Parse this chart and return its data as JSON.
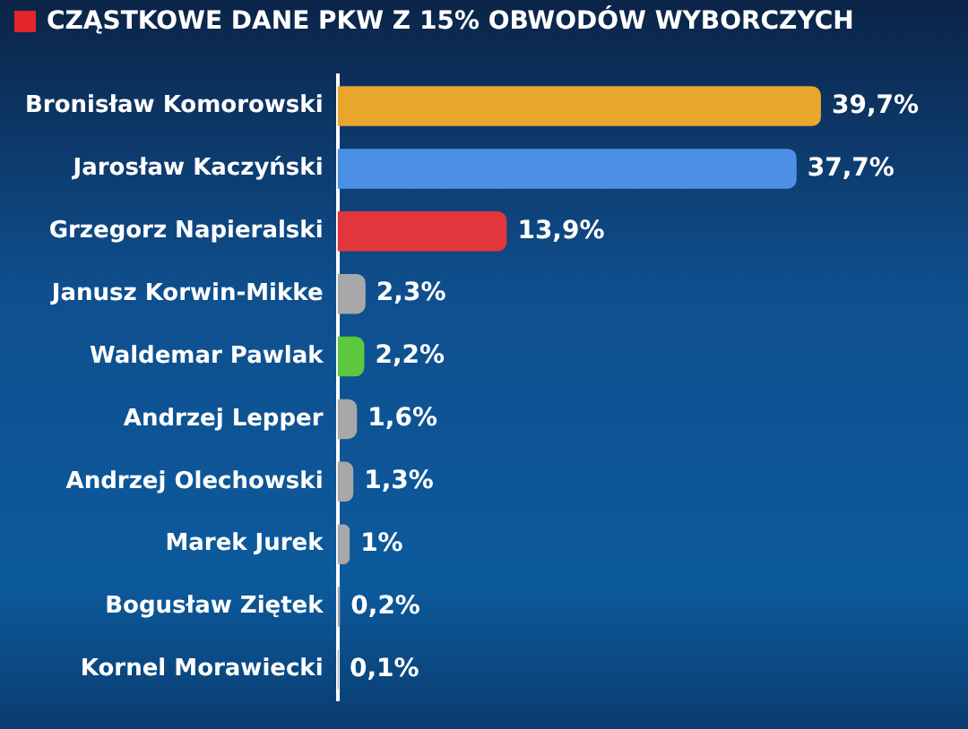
{
  "chart_data": {
    "type": "bar",
    "orientation": "horizontal",
    "title": "CZĄSTKOWE DANE PKW Z 15% OBWODÓW WYBORCZYCH",
    "categories": [
      "Bronisław Komorowski",
      "Jarosław Kaczyński",
      "Grzegorz Napieralski",
      "Janusz Korwin-Mikke",
      "Waldemar Pawlak",
      "Andrzej Lepper",
      "Andrzej Olechowski",
      "Marek Jurek",
      "Bogusław Ziętek",
      "Kornel Morawiecki"
    ],
    "values": [
      39.7,
      37.7,
      13.9,
      2.3,
      2.2,
      1.6,
      1.3,
      1,
      0.2,
      0.1
    ],
    "value_labels": [
      "39,7%",
      "37,7%",
      "13,9%",
      "2,3%",
      "2,2%",
      "1,6%",
      "1,3%",
      "1%",
      "0,2%",
      "0,1%"
    ],
    "colors": [
      "#e8a62c",
      "#4c90e6",
      "#e2363c",
      "#a8a8a8",
      "#5cc83e",
      "#a8a8a8",
      "#a8a8a8",
      "#a8a8a8",
      "#a8a8a8",
      "#a8a8a8"
    ],
    "tick_labels": "y"
  }
}
